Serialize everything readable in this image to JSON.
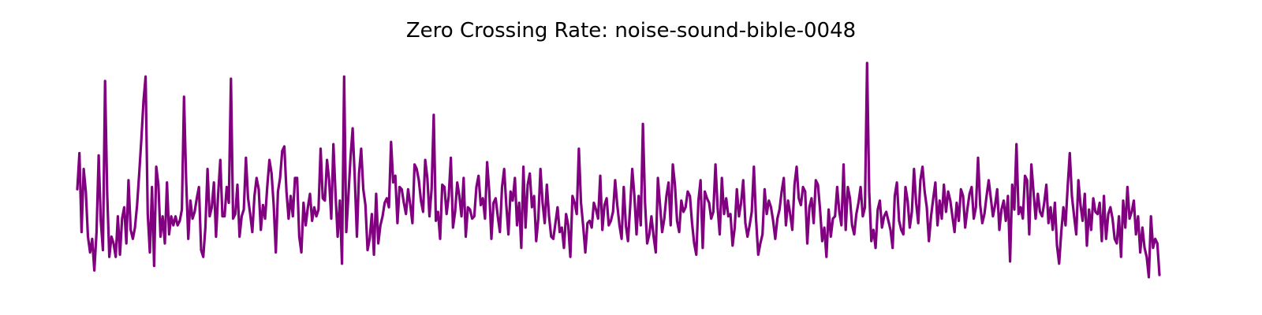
{
  "chart_data": {
    "type": "line",
    "title": "Zero Crossing Rate: noise-sound-bible-0048",
    "xlabel": "",
    "ylabel": "",
    "axes_visible": false,
    "grid": false,
    "color": "#800080",
    "series": [
      {
        "values": [
          0.42,
          0.58,
          0.23,
          0.51,
          0.41,
          0.21,
          0.14,
          0.2,
          0.06,
          0.23,
          0.57,
          0.28,
          0.15,
          0.9,
          0.4,
          0.12,
          0.21,
          0.18,
          0.12,
          0.3,
          0.13,
          0.29,
          0.34,
          0.18,
          0.46,
          0.24,
          0.2,
          0.25,
          0.35,
          0.49,
          0.64,
          0.81,
          0.92,
          0.31,
          0.14,
          0.43,
          0.08,
          0.52,
          0.44,
          0.21,
          0.3,
          0.18,
          0.45,
          0.22,
          0.3,
          0.26,
          0.3,
          0.26,
          0.28,
          0.33,
          0.83,
          0.46,
          0.2,
          0.37,
          0.29,
          0.32,
          0.38,
          0.43,
          0.15,
          0.12,
          0.25,
          0.51,
          0.3,
          0.34,
          0.45,
          0.21,
          0.4,
          0.55,
          0.3,
          0.3,
          0.43,
          0.36,
          0.91,
          0.29,
          0.31,
          0.44,
          0.21,
          0.3,
          0.33,
          0.56,
          0.38,
          0.31,
          0.23,
          0.39,
          0.47,
          0.42,
          0.24,
          0.35,
          0.29,
          0.43,
          0.55,
          0.49,
          0.35,
          0.14,
          0.41,
          0.47,
          0.59,
          0.61,
          0.41,
          0.29,
          0.39,
          0.3,
          0.47,
          0.47,
          0.21,
          0.14,
          0.36,
          0.26,
          0.34,
          0.4,
          0.28,
          0.34,
          0.3,
          0.33,
          0.6,
          0.38,
          0.37,
          0.55,
          0.46,
          0.29,
          0.62,
          0.4,
          0.21,
          0.37,
          0.09,
          0.92,
          0.23,
          0.39,
          0.56,
          0.69,
          0.47,
          0.21,
          0.49,
          0.6,
          0.42,
          0.35,
          0.15,
          0.2,
          0.31,
          0.13,
          0.4,
          0.18,
          0.26,
          0.3,
          0.36,
          0.38,
          0.34,
          0.63,
          0.45,
          0.48,
          0.27,
          0.43,
          0.42,
          0.36,
          0.31,
          0.42,
          0.35,
          0.27,
          0.53,
          0.51,
          0.46,
          0.37,
          0.32,
          0.55,
          0.47,
          0.3,
          0.42,
          0.75,
          0.28,
          0.32,
          0.2,
          0.44,
          0.43,
          0.31,
          0.39,
          0.56,
          0.25,
          0.32,
          0.45,
          0.39,
          0.3,
          0.47,
          0.21,
          0.34,
          0.33,
          0.29,
          0.3,
          0.43,
          0.48,
          0.35,
          0.38,
          0.29,
          0.54,
          0.41,
          0.2,
          0.36,
          0.38,
          0.3,
          0.23,
          0.43,
          0.51,
          0.35,
          0.22,
          0.41,
          0.37,
          0.47,
          0.26,
          0.36,
          0.16,
          0.52,
          0.25,
          0.44,
          0.49,
          0.34,
          0.39,
          0.19,
          0.29,
          0.51,
          0.36,
          0.27,
          0.44,
          0.3,
          0.21,
          0.2,
          0.27,
          0.34,
          0.23,
          0.25,
          0.16,
          0.31,
          0.26,
          0.12,
          0.39,
          0.36,
          0.31,
          0.6,
          0.36,
          0.26,
          0.14,
          0.27,
          0.28,
          0.25,
          0.36,
          0.33,
          0.29,
          0.48,
          0.24,
          0.35,
          0.38,
          0.26,
          0.28,
          0.32,
          0.46,
          0.35,
          0.26,
          0.2,
          0.43,
          0.26,
          0.19,
          0.34,
          0.51,
          0.39,
          0.22,
          0.39,
          0.26,
          0.71,
          0.36,
          0.18,
          0.22,
          0.3,
          0.21,
          0.14,
          0.47,
          0.35,
          0.23,
          0.29,
          0.39,
          0.45,
          0.26,
          0.53,
          0.44,
          0.28,
          0.23,
          0.37,
          0.32,
          0.34,
          0.41,
          0.39,
          0.27,
          0.18,
          0.13,
          0.37,
          0.46,
          0.16,
          0.41,
          0.38,
          0.36,
          0.29,
          0.32,
          0.53,
          0.34,
          0.22,
          0.47,
          0.31,
          0.38,
          0.3,
          0.31,
          0.17,
          0.25,
          0.42,
          0.3,
          0.36,
          0.46,
          0.27,
          0.21,
          0.26,
          0.32,
          0.52,
          0.29,
          0.13,
          0.18,
          0.22,
          0.42,
          0.31,
          0.37,
          0.34,
          0.28,
          0.2,
          0.29,
          0.33,
          0.41,
          0.47,
          0.26,
          0.37,
          0.31,
          0.24,
          0.44,
          0.52,
          0.38,
          0.35,
          0.43,
          0.41,
          0.18,
          0.34,
          0.38,
          0.27,
          0.46,
          0.44,
          0.33,
          0.19,
          0.25,
          0.12,
          0.33,
          0.21,
          0.29,
          0.3,
          0.43,
          0.32,
          0.26,
          0.53,
          0.24,
          0.43,
          0.38,
          0.26,
          0.22,
          0.31,
          0.36,
          0.43,
          0.3,
          0.34,
          0.98,
          0.41,
          0.19,
          0.24,
          0.16,
          0.33,
          0.37,
          0.25,
          0.3,
          0.32,
          0.28,
          0.24,
          0.16,
          0.39,
          0.45,
          0.28,
          0.24,
          0.22,
          0.43,
          0.37,
          0.25,
          0.32,
          0.51,
          0.36,
          0.27,
          0.46,
          0.52,
          0.41,
          0.34,
          0.19,
          0.3,
          0.38,
          0.45,
          0.26,
          0.37,
          0.29,
          0.44,
          0.32,
          0.41,
          0.37,
          0.3,
          0.23,
          0.36,
          0.28,
          0.42,
          0.39,
          0.25,
          0.33,
          0.4,
          0.43,
          0.29,
          0.34,
          0.56,
          0.35,
          0.27,
          0.31,
          0.39,
          0.46,
          0.38,
          0.3,
          0.35,
          0.42,
          0.24,
          0.33,
          0.37,
          0.28,
          0.39,
          0.1,
          0.44,
          0.33,
          0.62,
          0.31,
          0.34,
          0.29,
          0.48,
          0.46,
          0.22,
          0.53,
          0.41,
          0.29,
          0.4,
          0.32,
          0.3,
          0.36,
          0.44,
          0.27,
          0.34,
          0.24,
          0.36,
          0.17,
          0.09,
          0.23,
          0.34,
          0.26,
          0.43,
          0.58,
          0.39,
          0.3,
          0.22,
          0.46,
          0.35,
          0.28,
          0.4,
          0.17,
          0.33,
          0.24,
          0.38,
          0.32,
          0.31,
          0.36,
          0.19,
          0.39,
          0.2,
          0.31,
          0.34,
          0.29,
          0.2,
          0.18,
          0.3,
          0.12,
          0.37,
          0.25,
          0.43,
          0.29,
          0.32,
          0.37,
          0.22,
          0.3,
          0.14,
          0.25,
          0.16,
          0.12,
          0.03,
          0.3,
          0.16,
          0.2,
          0.18,
          0.04
        ]
      }
    ]
  }
}
